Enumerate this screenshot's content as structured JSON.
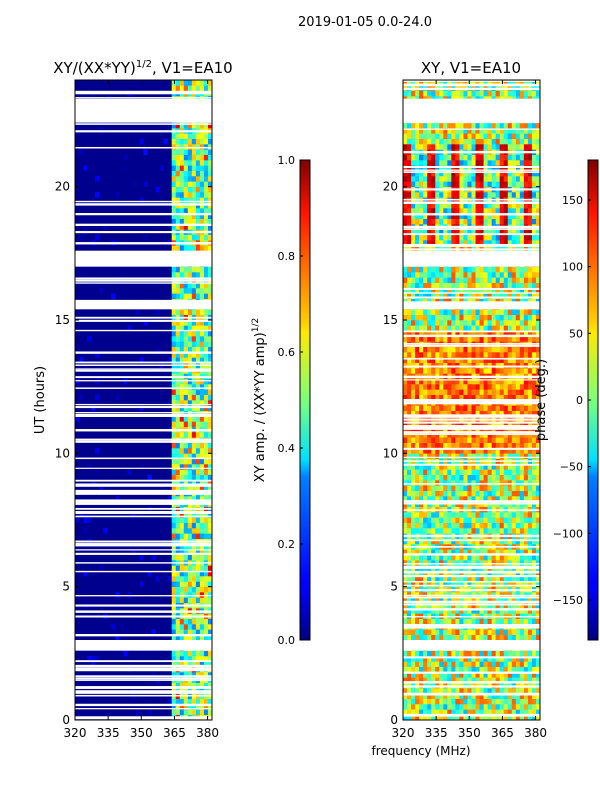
{
  "suptitle": "2019-01-05 0.0-24.0",
  "chart_data": [
    {
      "type": "heatmap",
      "title_main": "XY/(XX*YY)",
      "title_sup": "1/2",
      "title_rest": ", V1=EA10",
      "xlabel": "",
      "ylabel": "UT (hours)",
      "xlim": [
        320,
        382
      ],
      "ylim": [
        0,
        24
      ],
      "xticks": [
        "320",
        "335",
        "350",
        "365",
        "380"
      ],
      "xtick_values": [
        320,
        335,
        350,
        365,
        380
      ],
      "yticks": [
        "0",
        "5",
        "10",
        "15",
        "20"
      ],
      "ytick_values": [
        0,
        5,
        10,
        15,
        20
      ],
      "colorbar": {
        "label_main": "XY amp. / (XX*YY amp)",
        "label_sup": "1/2",
        "range": [
          0.0,
          1.0
        ],
        "ticks": [
          "0.0",
          "0.2",
          "0.4",
          "0.6",
          "0.8",
          "1.0"
        ],
        "tick_values": [
          0.0,
          0.2,
          0.4,
          0.6,
          0.8,
          1.0
        ],
        "colormap": "jet"
      },
      "flagged_time_ranges_hours": [
        [
          22.4,
          23.3
        ],
        [
          17.0,
          17.6
        ],
        [
          2.6,
          3.0
        ],
        [
          15.4,
          15.7
        ]
      ],
      "bright_channels_MHz": [
        363,
        383
      ]
    },
    {
      "type": "heatmap",
      "title": "XY, V1=EA10",
      "xlabel": "frequency (MHz)",
      "ylabel": "",
      "xlim": [
        320,
        382
      ],
      "ylim": [
        0,
        24
      ],
      "xticks": [
        "320",
        "335",
        "350",
        "365",
        "380"
      ],
      "xtick_values": [
        320,
        335,
        350,
        365,
        380
      ],
      "yticks": [
        "0",
        "5",
        "10",
        "15",
        "20"
      ],
      "ytick_values": [
        0,
        5,
        10,
        15,
        20
      ],
      "colorbar": {
        "label": "phase (deg.)",
        "range": [
          -180,
          180
        ],
        "ticks": [
          "−150",
          "−100",
          "−50",
          "0",
          "50",
          "100",
          "150"
        ],
        "tick_values": [
          -150,
          -100,
          -50,
          0,
          50,
          100,
          150
        ],
        "colormap": "jet"
      },
      "flagged_time_ranges_hours": [
        [
          22.4,
          23.3
        ],
        [
          17.0,
          17.6
        ],
        [
          2.6,
          3.0
        ],
        [
          15.4,
          15.7
        ]
      ]
    }
  ]
}
